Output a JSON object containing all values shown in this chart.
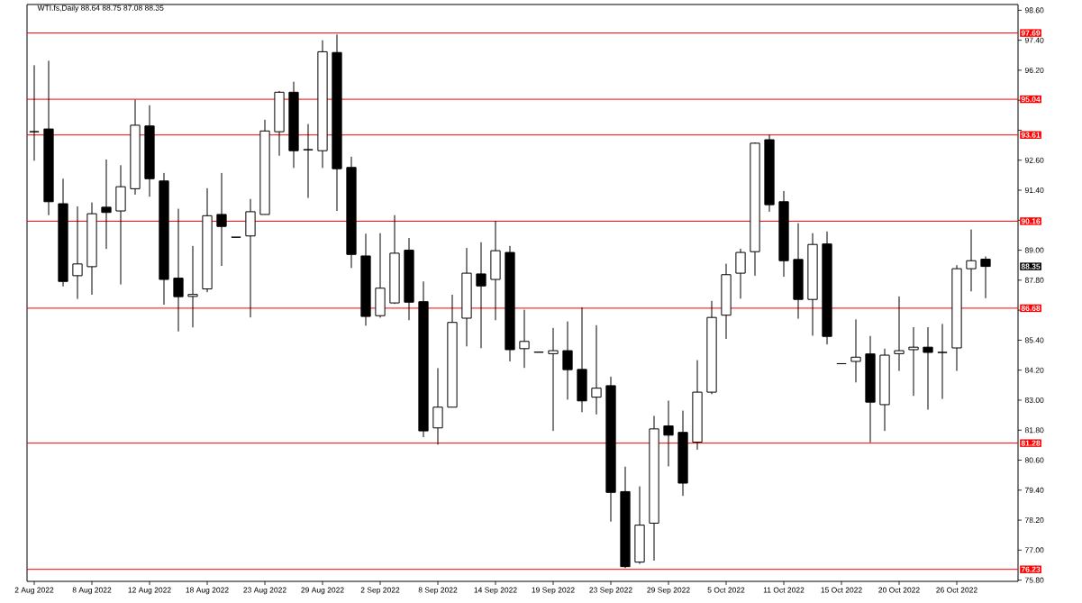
{
  "chart_data": {
    "type": "candlestick",
    "title": "WTI.fs,Daily 88.64 88.75 87.08 88.35",
    "categories": [
      "2 Aug 2022",
      null,
      null,
      null,
      "8 Aug 2022",
      null,
      null,
      null,
      "12 Aug 2022",
      null,
      null,
      null,
      "18 Aug 2022",
      null,
      null,
      null,
      "23 Aug 2022",
      null,
      null,
      null,
      "29 Aug 2022",
      null,
      null,
      null,
      "2 Sep 2022",
      null,
      null,
      null,
      "8 Sep 2022",
      null,
      null,
      null,
      "14 Sep 2022",
      null,
      null,
      null,
      "19 Sep 2022",
      null,
      null,
      null,
      "23 Sep 2022",
      null,
      null,
      null,
      "29 Sep 2022",
      null,
      null,
      null,
      "5 Oct 2022",
      null,
      null,
      null,
      "11 Oct 2022",
      null,
      null,
      null,
      "15 Oct 2022",
      null,
      null,
      null,
      "20 Oct 2022",
      null,
      null,
      null,
      "26 Oct 2022",
      null,
      null
    ],
    "ohlc": [
      [
        93.74,
        96.4,
        92.58,
        93.74
      ],
      [
        93.85,
        96.58,
        90.4,
        90.94
      ],
      [
        90.86,
        91.86,
        87.55,
        87.75
      ],
      [
        87.98,
        90.75,
        87.05,
        88.45
      ],
      [
        88.34,
        90.91,
        87.22,
        90.46
      ],
      [
        90.72,
        92.63,
        89.05,
        90.51
      ],
      [
        90.57,
        92.4,
        87.63,
        91.54
      ],
      [
        91.46,
        95.02,
        91.22,
        94.0
      ],
      [
        93.97,
        94.8,
        91.14,
        91.86
      ],
      [
        91.77,
        92.09,
        86.82,
        87.83
      ],
      [
        87.88,
        90.66,
        85.75,
        87.14
      ],
      [
        87.15,
        89.17,
        85.91,
        87.23
      ],
      [
        87.45,
        91.48,
        87.32,
        90.38
      ],
      [
        90.43,
        92.09,
        88.37,
        89.95
      ],
      [
        89.52,
        89.52,
        89.52,
        89.52
      ],
      [
        89.57,
        91.05,
        86.31,
        90.54
      ],
      [
        90.43,
        94.22,
        90.43,
        93.77
      ],
      [
        93.74,
        95.37,
        92.78,
        95.32
      ],
      [
        95.32,
        95.74,
        92.29,
        92.98
      ],
      [
        93.02,
        94.05,
        91.09,
        93.02
      ],
      [
        92.98,
        97.4,
        92.29,
        96.94
      ],
      [
        96.91,
        97.63,
        90.57,
        92.26
      ],
      [
        92.31,
        92.74,
        88.29,
        88.83
      ],
      [
        88.77,
        89.66,
        85.98,
        86.35
      ],
      [
        86.38,
        89.68,
        86.3,
        87.48
      ],
      [
        86.89,
        90.4,
        86.85,
        88.88
      ],
      [
        89.0,
        89.49,
        86.2,
        86.92
      ],
      [
        86.94,
        87.75,
        81.52,
        81.77
      ],
      [
        81.89,
        84.28,
        81.22,
        82.72
      ],
      [
        82.72,
        87.22,
        82.72,
        86.11
      ],
      [
        86.28,
        89.09,
        85.15,
        88.08
      ],
      [
        88.05,
        89.32,
        85.08,
        87.57
      ],
      [
        87.83,
        90.17,
        86.2,
        88.98
      ],
      [
        88.91,
        89.17,
        84.55,
        85.02
      ],
      [
        85.06,
        86.62,
        84.29,
        85.35
      ],
      [
        84.92,
        84.92,
        84.92,
        84.92
      ],
      [
        84.86,
        85.89,
        81.77,
        84.98
      ],
      [
        84.98,
        86.15,
        83.02,
        84.22
      ],
      [
        84.23,
        86.71,
        82.52,
        82.97
      ],
      [
        83.12,
        86.0,
        82.43,
        83.48
      ],
      [
        83.58,
        83.94,
        78.14,
        79.31
      ],
      [
        79.34,
        80.34,
        76.28,
        76.34
      ],
      [
        76.52,
        79.55,
        76.45,
        78.0
      ],
      [
        78.08,
        82.37,
        76.58,
        81.85
      ],
      [
        81.97,
        82.98,
        80.35,
        81.6
      ],
      [
        81.71,
        82.58,
        79.17,
        79.68
      ],
      [
        81.32,
        84.6,
        81.02,
        83.32
      ],
      [
        83.32,
        86.97,
        83.24,
        86.31
      ],
      [
        86.4,
        88.46,
        85.45,
        88.02
      ],
      [
        88.08,
        89.06,
        87.06,
        88.91
      ],
      [
        88.94,
        93.31,
        87.98,
        93.28
      ],
      [
        93.42,
        93.62,
        90.54,
        90.82
      ],
      [
        90.94,
        91.37,
        87.94,
        88.58
      ],
      [
        88.63,
        90.08,
        86.26,
        87.03
      ],
      [
        87.03,
        89.68,
        85.58,
        89.23
      ],
      [
        89.25,
        89.75,
        85.23,
        85.55
      ],
      [
        84.46,
        84.46,
        84.46,
        84.46
      ],
      [
        84.55,
        86.23,
        83.71,
        84.72
      ],
      [
        84.85,
        85.57,
        81.31,
        82.92
      ],
      [
        82.82,
        85.06,
        81.77,
        84.8
      ],
      [
        84.86,
        87.15,
        84.17,
        84.98
      ],
      [
        85.02,
        85.92,
        83.17,
        85.12
      ],
      [
        85.12,
        85.92,
        82.62,
        84.91
      ],
      [
        84.91,
        86.05,
        83.05,
        84.91
      ],
      [
        85.09,
        88.4,
        84.17,
        88.26
      ],
      [
        88.26,
        89.83,
        87.35,
        88.58
      ],
      [
        88.64,
        88.75,
        87.08,
        88.35
      ]
    ],
    "ylim": [
      75.75,
      98.83
    ],
    "yticks": [
      {
        "value": 98.6,
        "label": "98.60"
      },
      {
        "value": 97.4,
        "label": "97.40"
      },
      {
        "value": 96.2,
        "label": "96.20"
      },
      {
        "value": 95.0,
        "label": null
      },
      {
        "value": 93.8,
        "label": null
      },
      {
        "value": 92.6,
        "label": "92.60"
      },
      {
        "value": 91.4,
        "label": "91.40"
      },
      {
        "value": 90.2,
        "label": null
      },
      {
        "value": 89.0,
        "label": "89.00"
      },
      {
        "value": 87.8,
        "label": "87.80"
      },
      {
        "value": 86.6,
        "label": null
      },
      {
        "value": 85.4,
        "label": "85.40"
      },
      {
        "value": 84.2,
        "label": "84.20"
      },
      {
        "value": 83.0,
        "label": "83.00"
      },
      {
        "value": 81.8,
        "label": "81.80"
      },
      {
        "value": 80.6,
        "label": "80.60"
      },
      {
        "value": 79.4,
        "label": "79.40"
      },
      {
        "value": 78.2,
        "label": "78.20"
      },
      {
        "value": 77.0,
        "label": "77.00"
      },
      {
        "value": 75.8,
        "label": "75.80"
      }
    ],
    "ref_lines": [
      {
        "axis": "y",
        "value": 97.69,
        "label": "97.69",
        "color": "#ff0000"
      },
      {
        "axis": "y",
        "value": 95.04,
        "label": "95.04",
        "color": "#ff0000"
      },
      {
        "axis": "y",
        "value": 93.61,
        "label": "93.61",
        "color": "#ff0000"
      },
      {
        "axis": "y",
        "value": 90.16,
        "label": "90.16",
        "color": "#ff0000"
      },
      {
        "axis": "y",
        "value": 86.68,
        "label": "86.68",
        "color": "#ff0000"
      },
      {
        "axis": "y",
        "value": 81.28,
        "label": "81.28",
        "color": "#ff0000"
      },
      {
        "axis": "y",
        "value": 76.23,
        "label": "76.23",
        "color": "#ff0000"
      }
    ],
    "annotations": [
      "88.35"
    ]
  }
}
